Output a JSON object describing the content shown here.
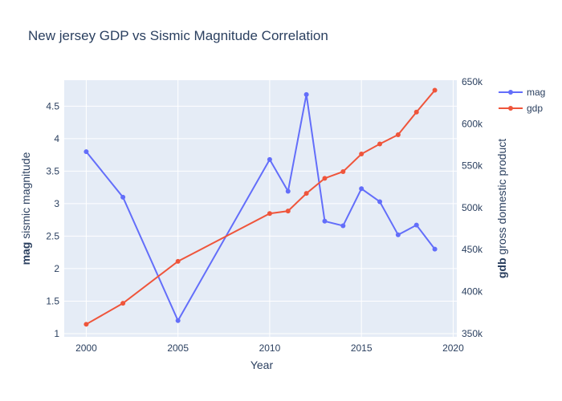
{
  "chart_data": {
    "type": "line",
    "title": "New jersey GDP vs Sismic Magnitude Correlation",
    "xlabel": "Year",
    "ylabel_bold": "mag",
    "ylabel_rest": " sismic magnitude",
    "y2label_bold": "gdb",
    "y2label_rest": " gross domestic product",
    "xlim": [
      1998.8,
      2020.2
    ],
    "ylim": [
      0.95,
      4.9
    ],
    "y2lim": [
      346000,
      652000
    ],
    "x_ticks": [
      2000,
      2005,
      2010,
      2015,
      2020
    ],
    "x_tick_labels": [
      "2000",
      "2005",
      "2010",
      "2015",
      "2020"
    ],
    "y_ticks": [
      1,
      1.5,
      2,
      2.5,
      3,
      3.5,
      4,
      4.5
    ],
    "y_tick_labels": [
      "1",
      "1.5",
      "2",
      "2.5",
      "3",
      "3.5",
      "4",
      "4.5"
    ],
    "y2_ticks": [
      350000,
      400000,
      450000,
      500000,
      550000,
      600000,
      650000
    ],
    "y2_tick_labels": [
      "350k",
      "400k",
      "450k",
      "500k",
      "550k",
      "600k",
      "650k"
    ],
    "legend_position": "top-right",
    "grid": true,
    "series": [
      {
        "name": "mag",
        "axis": "y",
        "color": "#636efa",
        "x": [
          2000,
          2002,
          2005,
          2010,
          2011,
          2012,
          2013,
          2014,
          2015,
          2016,
          2017,
          2018,
          2019
        ],
        "values": [
          3.8,
          3.1,
          1.2,
          3.68,
          3.19,
          4.68,
          2.73,
          2.66,
          3.23,
          3.03,
          2.52,
          2.67,
          2.3
        ]
      },
      {
        "name": "gdp",
        "axis": "y2",
        "color": "#ef553b",
        "x": [
          2000,
          2002,
          2005,
          2010,
          2011,
          2012,
          2013,
          2014,
          2015,
          2016,
          2017,
          2018,
          2019
        ],
        "values": [
          361000,
          386000,
          436000,
          493000,
          496000,
          517000,
          535000,
          543000,
          564000,
          576000,
          587000,
          614000,
          640000
        ]
      }
    ]
  }
}
